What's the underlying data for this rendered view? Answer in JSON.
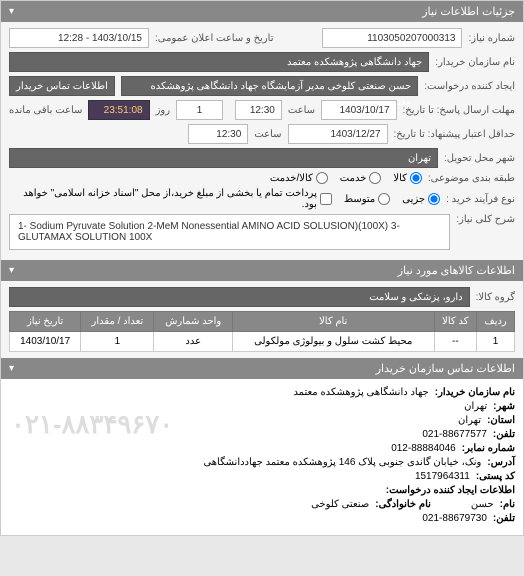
{
  "header": {
    "title": "جزئیات اطلاعات نیاز"
  },
  "form": {
    "need_number_label": "شماره نیاز:",
    "need_number": "1103050207000313",
    "announce_label": "تاریخ و ساعت اعلان عمومی:",
    "announce_value": "1403/10/15 - 12:28",
    "buyer_label": "نام سازمان خریدار:",
    "buyer_value": "جهاد دانشگاهی پژوهشکده معتمد",
    "requester_label": "ایجاد کننده درخواست:",
    "requester_value": "حسن صنعتی کلوخی مدیر آزمایشگاه جهاد دانشگاهی پژوهشکده معتمد",
    "buyer_contact_btn": "اطلاعات تماس خریدار",
    "deadline_from_label": "مهلت ارسال پاسخ: تا تاریخ:",
    "deadline_from_date": "1403/10/17",
    "time_label": "ساعت",
    "deadline_from_time": "12:30",
    "days_label": "روز",
    "days_value": "1",
    "countdown": "23:51:08",
    "remaining_label": "ساعت باقی مانده",
    "valid_to_label": "حداقل اعتبار پیشنهاد: تا تاریخ:",
    "valid_to_date": "1403/12/27",
    "valid_to_time": "12:30",
    "delivery_city_label": "شهر محل تحویل:",
    "delivery_city": "تهران",
    "budget_type_label": "طبقه بندی موضوعی:",
    "radio_goods": "کالا",
    "radio_service": "خدمت",
    "radio_goods_service": "کالا/خدمت",
    "purchase_type_label": "نوع فرآیند خرید :",
    "radio_small": "جزیی",
    "radio_medium": "متوسط",
    "purchase_note": "پرداخت تمام یا بخشی از مبلغ خرید،از محل \"اسناد خزانه اسلامی\" خواهد بود.",
    "desc_label": "شرح کلی نیاز:",
    "desc_value": "1- Sodium Pyruvate Solution 2-MeM Nonessential AMINO ACID SOLUSION)(100X) 3- GLUTAMAX SOLUTION 100X"
  },
  "goods": {
    "header": "اطلاعات کالاهای مورد نیاز",
    "group_label": "گروه کالا:",
    "group_value": "دارو، پزشکی و سلامت",
    "columns": [
      "ردیف",
      "کد کالا",
      "نام کالا",
      "واحد شمارش",
      "تعداد / مقدار",
      "تاریخ نیاز"
    ],
    "rows": [
      [
        "1",
        "--",
        "محیط کشت سلول و بیولوژی مولکولی",
        "عدد",
        "1",
        "1403/10/17"
      ]
    ]
  },
  "contact": {
    "header": "اطلاعات تماس سازمان خریدار",
    "org_label": "نام سازمان خریدار:",
    "org_value": "جهاد دانشگاهی پژوهشکده معتمد",
    "city_label": "شهر:",
    "city_value": "تهران",
    "province_label": "استان:",
    "province_value": "تهران",
    "phone_label": "تلفن:",
    "phone_value": "021-88677577",
    "fax_label": "شماره نمابر:",
    "fax_value": "012-88884046",
    "address_label": "آدرس:",
    "address_value": "ونک، خیابان گاندی جنوبی پلاک 146 پژوهشکده معتمد جهاددانشگاهی",
    "postal_label": "کد پستی:",
    "postal_value": "1517964311",
    "creator_header": "اطلاعات ایجاد کننده درخواست:",
    "name_label": "نام:",
    "name_value": "حسن",
    "family_label": "نام خانوادگی:",
    "family_value": "صنعتی کلوخی",
    "cphone_label": "تلفن:",
    "cphone_value": "021-88679730",
    "watermark": "۰۲۱-۸۸۳۴۹۶۷۰"
  }
}
